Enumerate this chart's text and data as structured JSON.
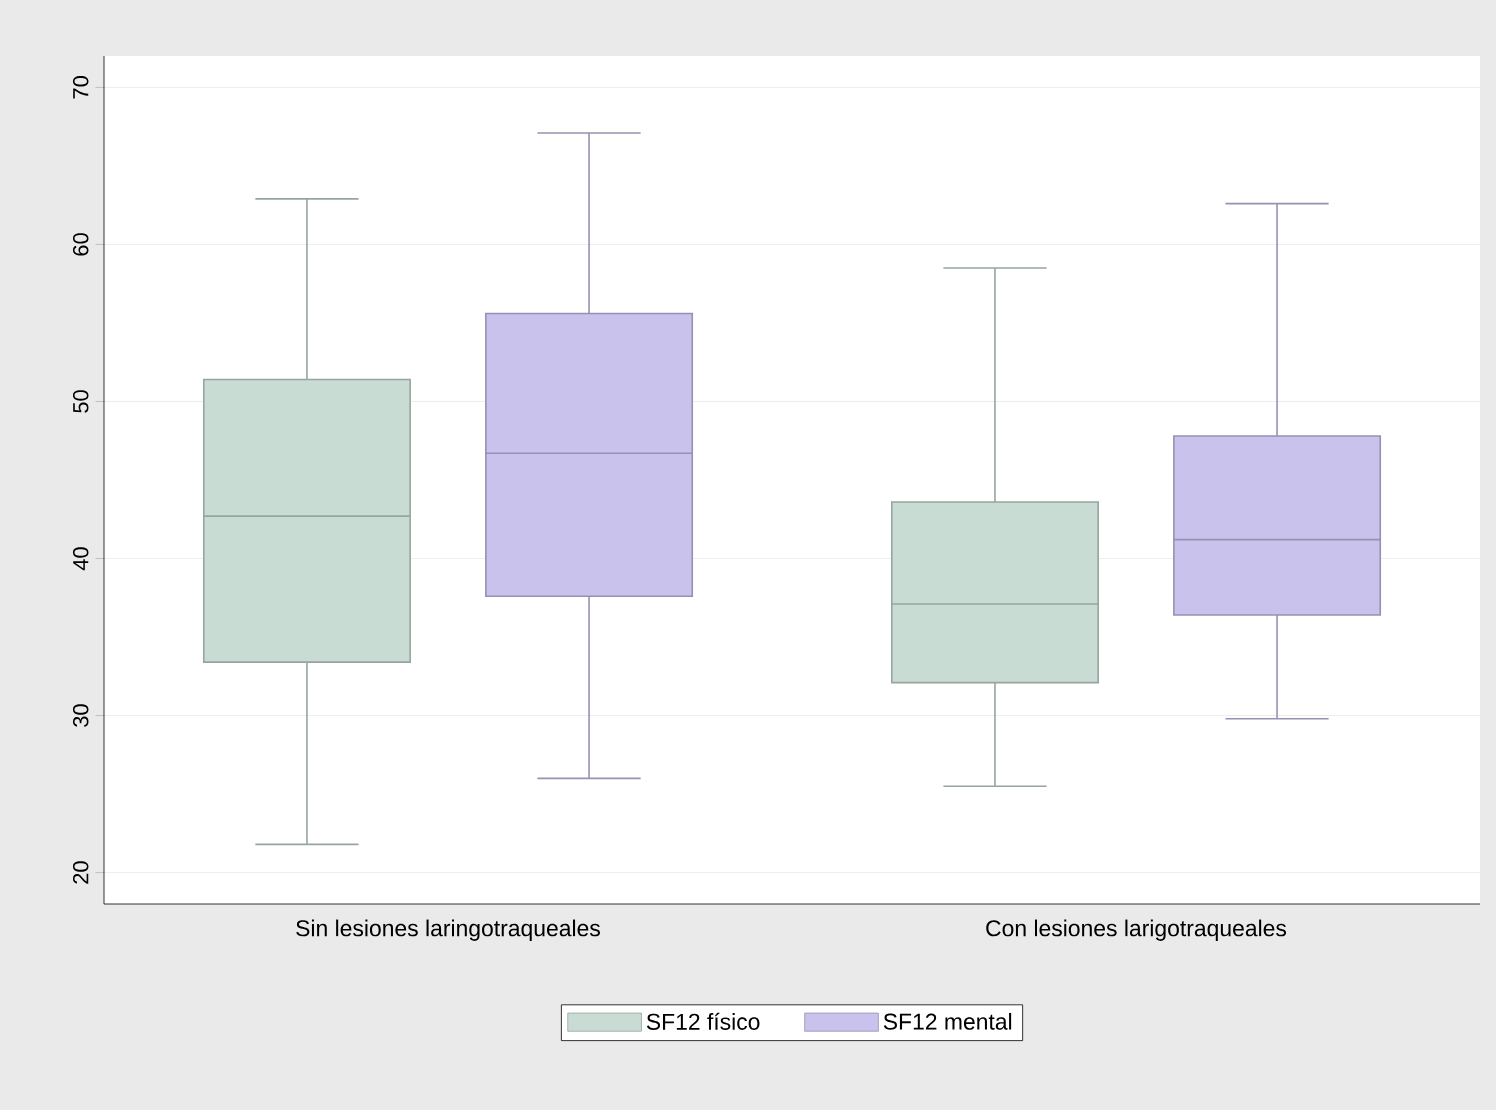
{
  "chart_data": {
    "type": "box",
    "categories": [
      "Sin lesiones laringotraqueales",
      "Con lesiones larigotraqueales"
    ],
    "series": [
      {
        "name": "SF12 físico",
        "color": "#c8dcd4",
        "boxes": [
          {
            "low": 21.8,
            "q1": 33.4,
            "median": 42.7,
            "q3": 51.4,
            "high": 62.9
          },
          {
            "low": 25.5,
            "q1": 32.1,
            "median": 37.1,
            "q3": 43.6,
            "high": 58.5
          }
        ]
      },
      {
        "name": "SF12 mental",
        "color": "#c9c2ec",
        "boxes": [
          {
            "low": 26,
            "q1": 37.6,
            "median": 46.7,
            "q3": 55.6,
            "high": 67.1
          },
          {
            "low": 29.8,
            "q1": 36.4,
            "median": 41.2,
            "q3": 47.8,
            "high": 62.6
          }
        ]
      }
    ],
    "ylim": [
      18,
      72
    ],
    "yticks": [
      20,
      30,
      40,
      50,
      60,
      70
    ],
    "grid": "y",
    "legend": "bottom"
  }
}
